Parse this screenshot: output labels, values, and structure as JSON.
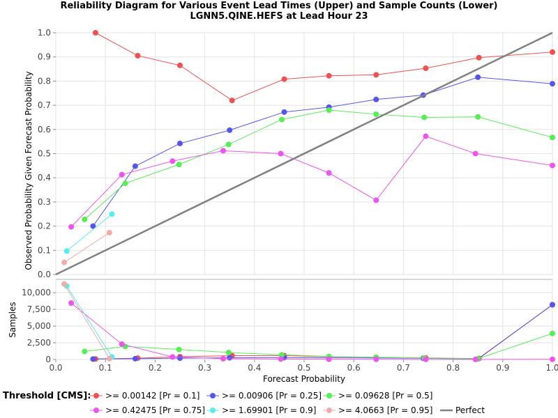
{
  "chart_data": [
    {
      "type": "line",
      "panel": "upper",
      "title": "Reliability Diagram for Various Event Lead Times (Upper) and Sample Counts (Lower)",
      "subtitle": "LGNN5.QINE.HEFS at Lead Hour 23",
      "ylabel": "Observed Probability Given Forecast Probability",
      "xlim": [
        0,
        1.0
      ],
      "ylim": [
        0,
        1.0
      ],
      "yticks": [
        "0.0",
        "0.1",
        "0.2",
        "0.3",
        "0.4",
        "0.5",
        "0.6",
        "0.7",
        "0.8",
        "0.9",
        "1.0"
      ],
      "grid": true,
      "series": [
        {
          "name": ">= 0.00142 [Pr = 0.1]",
          "color": "#f05050",
          "x": [
            0.08,
            0.165,
            0.25,
            0.355,
            0.46,
            0.55,
            0.645,
            0.745,
            0.852,
            1.0
          ],
          "y": [
            1.0,
            0.905,
            0.865,
            0.72,
            0.808,
            0.822,
            0.826,
            0.853,
            0.897,
            0.92
          ]
        },
        {
          "name": ">= 0.00906 [Pr = 0.25]",
          "color": "#5555ee",
          "x": [
            0.075,
            0.16,
            0.25,
            0.35,
            0.46,
            0.55,
            0.645,
            0.74,
            0.85,
            1.0
          ],
          "y": [
            0.2,
            0.448,
            0.542,
            0.597,
            0.672,
            0.692,
            0.724,
            0.742,
            0.816,
            0.789
          ]
        },
        {
          "name": ">= 0.09628 [Pr = 0.5]",
          "color": "#55ee55",
          "x": [
            0.058,
            0.14,
            0.248,
            0.348,
            0.455,
            0.55,
            0.645,
            0.742,
            0.85,
            1.0
          ],
          "y": [
            0.228,
            0.377,
            0.455,
            0.538,
            0.641,
            0.68,
            0.663,
            0.65,
            0.652,
            0.567
          ]
        },
        {
          "name": ">= 0.42475 [Pr = 0.75]",
          "color": "#ee55ee",
          "x": [
            0.031,
            0.133,
            0.235,
            0.337,
            0.453,
            0.55,
            0.645,
            0.745,
            0.845,
            1.0
          ],
          "y": [
            0.197,
            0.413,
            0.469,
            0.512,
            0.5,
            0.42,
            0.307,
            0.572,
            0.5,
            0.451
          ]
        },
        {
          "name": ">= 1.69901 [Pr = 0.9]",
          "color": "#55eeee",
          "x": [
            0.022,
            0.113
          ],
          "y": [
            0.097,
            0.25
          ]
        },
        {
          "name": ">= 4.0663 [Pr = 0.95]",
          "color": "#f5aaaa",
          "x": [
            0.017,
            0.108
          ],
          "y": [
            0.05,
            0.173
          ]
        },
        {
          "name": "Perfect",
          "color": "#808080",
          "x": [
            0,
            1.0
          ],
          "y": [
            0,
            1.0
          ]
        }
      ]
    },
    {
      "type": "line",
      "panel": "lower",
      "xlabel": "Forecast Probability",
      "ylabel": "Samples",
      "xlim": [
        0,
        1.0
      ],
      "ylim": [
        0,
        12000
      ],
      "xticks": [
        "0.0",
        "0.1",
        "0.2",
        "0.3",
        "0.4",
        "0.5",
        "0.6",
        "0.7",
        "0.8",
        "0.9",
        "1.0"
      ],
      "yticks": [
        "0",
        "2,500",
        "5,000",
        "7,500",
        "10,000"
      ],
      "grid": true,
      "series": [
        {
          "name": ">= 0.00142 [Pr = 0.1]",
          "color": "#f05050",
          "x": [
            0.08,
            0.165,
            0.25,
            0.355,
            0.46,
            0.55,
            0.645,
            0.745,
            0.852,
            1.0
          ],
          "y": [
            80,
            200,
            420,
            580,
            580,
            400,
            330,
            230,
            140,
            8200
          ]
        },
        {
          "name": ">= 0.00906 [Pr = 0.25]",
          "color": "#5555ee",
          "x": [
            0.075,
            0.16,
            0.25,
            0.35,
            0.46,
            0.55,
            0.645,
            0.74,
            0.85,
            1.0
          ],
          "y": [
            60,
            120,
            200,
            250,
            280,
            250,
            220,
            180,
            90,
            8200
          ]
        },
        {
          "name": ">= 0.09628 [Pr = 0.5]",
          "color": "#55ee55",
          "x": [
            0.058,
            0.14,
            0.248,
            0.348,
            0.455,
            0.55,
            0.645,
            0.742,
            0.85,
            1.0
          ],
          "y": [
            1200,
            1950,
            1500,
            1050,
            700,
            450,
            330,
            210,
            120,
            3900
          ]
        },
        {
          "name": ">= 0.42475 [Pr = 0.75]",
          "color": "#ee55ee",
          "x": [
            0.031,
            0.133,
            0.235,
            0.337,
            0.453,
            0.55,
            0.645,
            0.745,
            0.845,
            1.0
          ],
          "y": [
            8450,
            2300,
            380,
            120,
            70,
            40,
            25,
            15,
            10,
            25
          ]
        },
        {
          "name": ">= 1.69901 [Pr = 0.9]",
          "color": "#55eeee",
          "x": [
            0.022,
            0.113
          ],
          "y": [
            11000,
            380
          ]
        },
        {
          "name": ">= 4.0663 [Pr = 0.95]",
          "color": "#f5aaaa",
          "x": [
            0.017,
            0.108
          ],
          "y": [
            11300,
            120
          ]
        }
      ]
    }
  ],
  "legend": {
    "title": "Threshold [CMS]:",
    "placement": "bottom",
    "items": [
      {
        "label": ">= 0.00142 [Pr = 0.1]",
        "color": "#f05050",
        "kind": "marker"
      },
      {
        "label": ">= 0.00906 [Pr = 0.25]",
        "color": "#5555ee",
        "kind": "marker"
      },
      {
        "label": ">= 0.09628 [Pr = 0.5]",
        "color": "#55ee55",
        "kind": "marker"
      },
      {
        "label": ">= 0.42475 [Pr = 0.75]",
        "color": "#ee55ee",
        "kind": "marker"
      },
      {
        "label": ">= 1.69901 [Pr = 0.9]",
        "color": "#55eeee",
        "kind": "marker"
      },
      {
        "label": ">= 4.0663 [Pr = 0.95]",
        "color": "#f5aaaa",
        "kind": "marker"
      },
      {
        "label": "Perfect",
        "color": "#808080",
        "kind": "line"
      }
    ]
  }
}
